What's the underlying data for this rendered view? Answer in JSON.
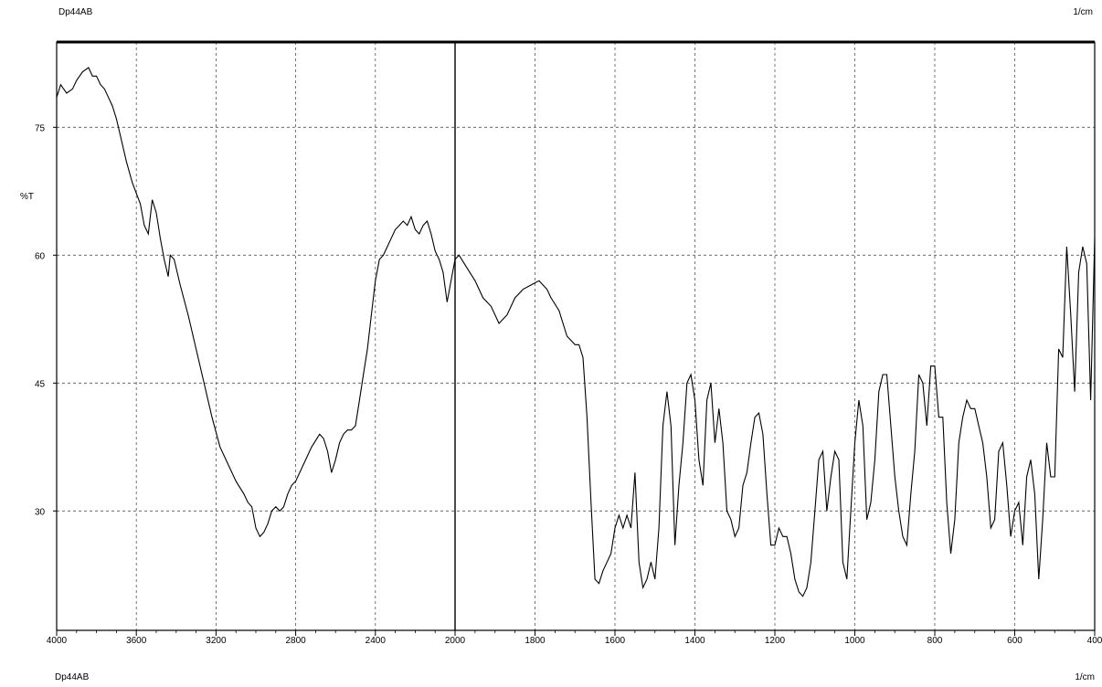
{
  "header": {
    "left_label": "Dp44AB",
    "right_label": "1/cm"
  },
  "footer": {
    "left_label": "Dp44AB",
    "right_label": "1/cm"
  },
  "colors": {
    "background": "#ffffff",
    "frame": "#000000",
    "grid": "#555555",
    "trace": "#000000"
  },
  "chart_data": {
    "type": "line",
    "title": "",
    "xlabel": "1/cm",
    "ylabel": "%T",
    "xlim": [
      4000,
      400
    ],
    "ylim": [
      16,
      85
    ],
    "x_reversed": true,
    "grid": true,
    "x_ticks": [
      4000,
      3600,
      3200,
      2800,
      2400,
      2000,
      1800,
      1600,
      1400,
      1200,
      1000,
      800,
      600,
      400
    ],
    "x_tick_labels": [
      "4000",
      "3600",
      "3200",
      "2800",
      "2400",
      "2000",
      "1800",
      "1600",
      "1400",
      "1200",
      "1000",
      "800",
      "600",
      "400"
    ],
    "y_ticks": [
      30,
      45,
      60,
      75
    ],
    "y_tick_labels": [
      "30",
      "45",
      "60",
      "75"
    ],
    "axis_break_x": 2000,
    "series": [
      {
        "points": [
          [
            4000,
            78.5
          ],
          [
            3980,
            80
          ],
          [
            3950,
            79
          ],
          [
            3920,
            79.5
          ],
          [
            3900,
            80.5
          ],
          [
            3870,
            81.5
          ],
          [
            3840,
            82
          ],
          [
            3820,
            81
          ],
          [
            3800,
            81
          ],
          [
            3780,
            80
          ],
          [
            3760,
            79.5
          ],
          [
            3740,
            78.5
          ],
          [
            3720,
            77.5
          ],
          [
            3700,
            76
          ],
          [
            3680,
            74
          ],
          [
            3650,
            71
          ],
          [
            3620,
            68.5
          ],
          [
            3580,
            66
          ],
          [
            3560,
            63.5
          ],
          [
            3540,
            62.5
          ],
          [
            3520,
            66.5
          ],
          [
            3500,
            65
          ],
          [
            3480,
            62
          ],
          [
            3460,
            59.5
          ],
          [
            3440,
            57.5
          ],
          [
            3430,
            60
          ],
          [
            3410,
            59.5
          ],
          [
            3380,
            56.5
          ],
          [
            3340,
            53
          ],
          [
            3300,
            49
          ],
          [
            3260,
            45
          ],
          [
            3220,
            41
          ],
          [
            3180,
            37.5
          ],
          [
            3140,
            35.5
          ],
          [
            3100,
            33.5
          ],
          [
            3060,
            32
          ],
          [
            3040,
            31
          ],
          [
            3020,
            30.5
          ],
          [
            3000,
            28
          ],
          [
            2980,
            27
          ],
          [
            2960,
            27.5
          ],
          [
            2940,
            28.5
          ],
          [
            2920,
            30
          ],
          [
            2900,
            30.5
          ],
          [
            2880,
            30
          ],
          [
            2860,
            30.5
          ],
          [
            2840,
            32
          ],
          [
            2820,
            33
          ],
          [
            2800,
            33.5
          ],
          [
            2760,
            35.5
          ],
          [
            2720,
            37.5
          ],
          [
            2680,
            39
          ],
          [
            2660,
            38.5
          ],
          [
            2640,
            37
          ],
          [
            2620,
            34.5
          ],
          [
            2600,
            36
          ],
          [
            2580,
            38
          ],
          [
            2560,
            39
          ],
          [
            2540,
            39.5
          ],
          [
            2520,
            39.5
          ],
          [
            2500,
            40
          ],
          [
            2480,
            43
          ],
          [
            2460,
            46
          ],
          [
            2440,
            49
          ],
          [
            2420,
            53
          ],
          [
            2400,
            57
          ],
          [
            2380,
            59.5
          ],
          [
            2360,
            60
          ],
          [
            2340,
            61
          ],
          [
            2320,
            62
          ],
          [
            2300,
            63
          ],
          [
            2280,
            63.5
          ],
          [
            2260,
            64
          ],
          [
            2240,
            63.5
          ],
          [
            2220,
            64.5
          ],
          [
            2200,
            63
          ],
          [
            2180,
            62.5
          ],
          [
            2160,
            63.5
          ],
          [
            2140,
            64
          ],
          [
            2120,
            62.5
          ],
          [
            2100,
            60.5
          ],
          [
            2080,
            59.5
          ],
          [
            2060,
            58
          ],
          [
            2040,
            54.5
          ],
          [
            2020,
            57
          ],
          [
            2000,
            59.5
          ],
          [
            1990,
            60
          ],
          [
            1970,
            58.5
          ],
          [
            1950,
            57
          ],
          [
            1930,
            55
          ],
          [
            1910,
            54
          ],
          [
            1890,
            52
          ],
          [
            1870,
            53
          ],
          [
            1850,
            55
          ],
          [
            1830,
            56
          ],
          [
            1810,
            56.5
          ],
          [
            1790,
            57
          ],
          [
            1770,
            56
          ],
          [
            1760,
            55
          ],
          [
            1740,
            53.5
          ],
          [
            1720,
            50.5
          ],
          [
            1700,
            49.5
          ],
          [
            1690,
            49.5
          ],
          [
            1680,
            48
          ],
          [
            1670,
            41
          ],
          [
            1660,
            31
          ],
          [
            1650,
            22
          ],
          [
            1640,
            21.5
          ],
          [
            1630,
            23
          ],
          [
            1620,
            24
          ],
          [
            1610,
            25
          ],
          [
            1600,
            28
          ],
          [
            1590,
            29.5
          ],
          [
            1580,
            28
          ],
          [
            1570,
            29.5
          ],
          [
            1560,
            28
          ],
          [
            1550,
            34.5
          ],
          [
            1540,
            24
          ],
          [
            1530,
            21
          ],
          [
            1520,
            22
          ],
          [
            1510,
            24
          ],
          [
            1500,
            22
          ],
          [
            1490,
            28
          ],
          [
            1480,
            40
          ],
          [
            1470,
            44
          ],
          [
            1460,
            40
          ],
          [
            1450,
            26
          ],
          [
            1440,
            33
          ],
          [
            1430,
            38
          ],
          [
            1420,
            45
          ],
          [
            1410,
            46
          ],
          [
            1400,
            43
          ],
          [
            1390,
            36
          ],
          [
            1380,
            33
          ],
          [
            1370,
            43
          ],
          [
            1360,
            45
          ],
          [
            1350,
            38
          ],
          [
            1340,
            42
          ],
          [
            1330,
            38
          ],
          [
            1320,
            30
          ],
          [
            1310,
            29
          ],
          [
            1300,
            27
          ],
          [
            1290,
            28
          ],
          [
            1280,
            33
          ],
          [
            1270,
            34.5
          ],
          [
            1260,
            38
          ],
          [
            1250,
            41
          ],
          [
            1240,
            41.5
          ],
          [
            1230,
            39
          ],
          [
            1220,
            32
          ],
          [
            1210,
            26
          ],
          [
            1200,
            26
          ],
          [
            1190,
            28
          ],
          [
            1180,
            27
          ],
          [
            1170,
            27
          ],
          [
            1160,
            25
          ],
          [
            1150,
            22
          ],
          [
            1140,
            20.5
          ],
          [
            1130,
            20
          ],
          [
            1120,
            21
          ],
          [
            1110,
            24
          ],
          [
            1100,
            30
          ],
          [
            1090,
            36
          ],
          [
            1080,
            37
          ],
          [
            1070,
            30
          ],
          [
            1060,
            34
          ],
          [
            1050,
            37
          ],
          [
            1040,
            36
          ],
          [
            1030,
            24
          ],
          [
            1020,
            22
          ],
          [
            1010,
            30
          ],
          [
            1000,
            38
          ],
          [
            990,
            43
          ],
          [
            980,
            40
          ],
          [
            970,
            29
          ],
          [
            960,
            31
          ],
          [
            950,
            36
          ],
          [
            940,
            44
          ],
          [
            930,
            46
          ],
          [
            920,
            46
          ],
          [
            910,
            40
          ],
          [
            900,
            34
          ],
          [
            890,
            30
          ],
          [
            880,
            27
          ],
          [
            870,
            26
          ],
          [
            860,
            32
          ],
          [
            850,
            37
          ],
          [
            840,
            46
          ],
          [
            830,
            45
          ],
          [
            820,
            40
          ],
          [
            810,
            47
          ],
          [
            800,
            47
          ],
          [
            790,
            41
          ],
          [
            780,
            41
          ],
          [
            770,
            31
          ],
          [
            760,
            25
          ],
          [
            750,
            29
          ],
          [
            740,
            38
          ],
          [
            730,
            41
          ],
          [
            720,
            43
          ],
          [
            710,
            42
          ],
          [
            700,
            42
          ],
          [
            690,
            40
          ],
          [
            680,
            38
          ],
          [
            670,
            34
          ],
          [
            660,
            28
          ],
          [
            650,
            29
          ],
          [
            640,
            37
          ],
          [
            630,
            38
          ],
          [
            620,
            33
          ],
          [
            610,
            27
          ],
          [
            600,
            30
          ],
          [
            590,
            31
          ],
          [
            580,
            26
          ],
          [
            570,
            34
          ],
          [
            560,
            36
          ],
          [
            550,
            32
          ],
          [
            540,
            22
          ],
          [
            530,
            29
          ],
          [
            520,
            38
          ],
          [
            510,
            34
          ],
          [
            500,
            34
          ],
          [
            490,
            49
          ],
          [
            480,
            48
          ],
          [
            470,
            61
          ],
          [
            460,
            53
          ],
          [
            450,
            44
          ],
          [
            440,
            58
          ],
          [
            430,
            61
          ],
          [
            420,
            59
          ],
          [
            410,
            43
          ],
          [
            400,
            62
          ]
        ]
      }
    ]
  }
}
